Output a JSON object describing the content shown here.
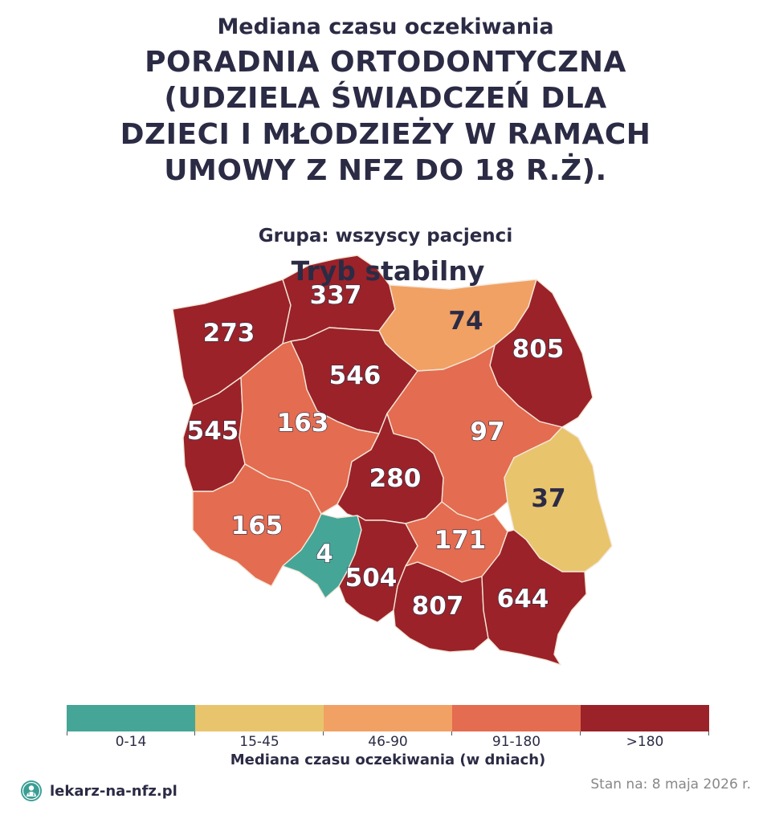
{
  "header": {
    "subtitle": "Mediana czasu oczekiwania",
    "title": "PORADNIA ORTODONTYCZNA (UDZIELA ŚWIADCZEŃ DLA DZIECI I MŁODZIEŻY W RAMACH UMOWY Z NFZ DO 18 R.Ż).",
    "group": "Grupa: wszyscy pacjenci",
    "mode": "Tryb stabilny"
  },
  "colors": {
    "0-14": "#45a597",
    "15-45": "#e8c46d",
    "46-90": "#f1a164",
    "91-180": "#e46c50",
    ">180": "#9b2229"
  },
  "regions": [
    {
      "id": "zachodniopomorskie",
      "value": 273,
      "label": "273",
      "category": ">180"
    },
    {
      "id": "pomorskie",
      "value": 337,
      "label": "337",
      "category": ">180"
    },
    {
      "id": "warminsko-mazurskie",
      "value": 74,
      "label": "74",
      "category": "46-90"
    },
    {
      "id": "podlaskie",
      "value": 805,
      "label": "805",
      "category": ">180"
    },
    {
      "id": "kujawsko-pomorskie",
      "value": 546,
      "label": "546",
      "category": ">180"
    },
    {
      "id": "lubuskie",
      "value": 545,
      "label": "545",
      "category": ">180"
    },
    {
      "id": "wielkopolskie",
      "value": 163,
      "label": "163",
      "category": "91-180"
    },
    {
      "id": "mazowieckie",
      "value": 97,
      "label": "97",
      "category": "91-180"
    },
    {
      "id": "lodzkie",
      "value": 280,
      "label": "280",
      "category": ">180"
    },
    {
      "id": "lubelskie",
      "value": 37,
      "label": "37",
      "category": "15-45"
    },
    {
      "id": "dolnoslaskie",
      "value": 165,
      "label": "165",
      "category": "91-180"
    },
    {
      "id": "opolskie",
      "value": 4,
      "label": "4",
      "category": "0-14"
    },
    {
      "id": "slaskie",
      "value": 504,
      "label": "504",
      "category": ">180"
    },
    {
      "id": "swietokrzyskie",
      "value": 171,
      "label": "171",
      "category": "91-180"
    },
    {
      "id": "malopolskie",
      "value": 807,
      "label": "807",
      "category": ">180"
    },
    {
      "id": "podkarpackie",
      "value": 644,
      "label": "644",
      "category": ">180"
    }
  ],
  "legend": {
    "bins": [
      "0-14",
      "15-45",
      "46-90",
      "91-180",
      ">180"
    ],
    "title": "Mediana czasu oczekiwania (w dniach)"
  },
  "footer": {
    "brand": "lekarz-na-nfz.pl",
    "brand_icon": "doctor-icon",
    "date": "Stan na: 8 maja 2026 r."
  }
}
